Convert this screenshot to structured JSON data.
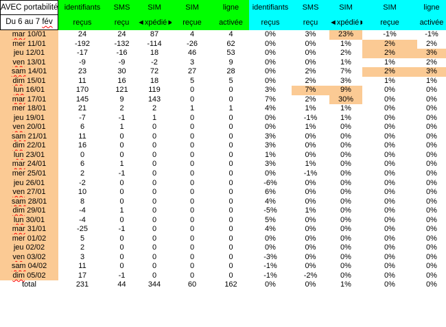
{
  "titles": {
    "line1": "AVEC portabilité",
    "line2_prefix": "Du 6 au 7",
    "line2_suffix": "fév"
  },
  "colors": {
    "left_header_bg": "#00FF00",
    "right_header_bg": "#00FFFF",
    "date_column_bg": "#FBCA94",
    "highlight_bg": "#FBCA94",
    "spellcheck_underline": "#FF0000"
  },
  "header": {
    "left_top": [
      "identifiants",
      "SMS",
      "SIM",
      "SIM",
      "ligne"
    ],
    "left_bottom": [
      "reçus",
      "reçu",
      "◄xpédié►",
      "reçue",
      "activée"
    ],
    "right_top": [
      "identifiants",
      "SMS",
      "SIM",
      "SIM",
      "ligne"
    ],
    "right_bottom": [
      "reçus",
      "reçu",
      "◄xpédié►",
      "reçue",
      "activée"
    ]
  },
  "rows": [
    {
      "day": "mar",
      "dnum": "10/01",
      "sq": true,
      "counts": [
        24,
        24,
        87,
        4,
        4
      ],
      "pcts": [
        "0%",
        "3%",
        "23%",
        "-1%",
        "-1%"
      ],
      "hl": [
        2
      ]
    },
    {
      "day": "mer",
      "dnum": "11/01",
      "sq": false,
      "counts": [
        -192,
        -132,
        -114,
        -26,
        62
      ],
      "pcts": [
        "0%",
        "0%",
        "1%",
        "2%",
        "2%"
      ],
      "hl": [
        3
      ]
    },
    {
      "day": "jeu",
      "dnum": "12/01",
      "sq": false,
      "counts": [
        -17,
        -16,
        18,
        46,
        53
      ],
      "pcts": [
        "0%",
        "0%",
        "2%",
        "2%",
        "3%"
      ],
      "hl": [
        3,
        4
      ]
    },
    {
      "day": "ven",
      "dnum": "13/01",
      "sq": true,
      "counts": [
        -9,
        -9,
        -2,
        3,
        9
      ],
      "pcts": [
        "0%",
        "0%",
        "1%",
        "1%",
        "2%"
      ],
      "hl": []
    },
    {
      "day": "sam",
      "dnum": "14/01",
      "sq": true,
      "counts": [
        23,
        30,
        72,
        27,
        28
      ],
      "pcts": [
        "0%",
        "2%",
        "7%",
        "2%",
        "3%"
      ],
      "hl": [
        3,
        4
      ]
    },
    {
      "day": "dim",
      "dnum": "15/01",
      "sq": true,
      "counts": [
        11,
        16,
        18,
        5,
        5
      ],
      "pcts": [
        "0%",
        "2%",
        "3%",
        "1%",
        "1%"
      ],
      "hl": []
    },
    {
      "day": "lun",
      "dnum": "16/01",
      "sq": true,
      "counts": [
        170,
        121,
        119,
        0,
        0
      ],
      "pcts": [
        "3%",
        "7%",
        "9%",
        "0%",
        "0%"
      ],
      "hl": [
        1,
        2
      ]
    },
    {
      "day": "mar",
      "dnum": "17/01",
      "sq": true,
      "counts": [
        145,
        9,
        143,
        0,
        0
      ],
      "pcts": [
        "7%",
        "2%",
        "30%",
        "0%",
        "0%"
      ],
      "hl": [
        2
      ]
    },
    {
      "day": "mer",
      "dnum": "18/01",
      "sq": false,
      "counts": [
        21,
        2,
        2,
        1,
        1
      ],
      "pcts": [
        "4%",
        "1%",
        "1%",
        "0%",
        "0%"
      ],
      "hl": []
    },
    {
      "day": "jeu",
      "dnum": "19/01",
      "sq": false,
      "counts": [
        -7,
        -1,
        1,
        0,
        0
      ],
      "pcts": [
        "0%",
        "-1%",
        "1%",
        "0%",
        "0%"
      ],
      "hl": []
    },
    {
      "day": "ven",
      "dnum": "20/01",
      "sq": true,
      "counts": [
        6,
        1,
        0,
        0,
        0
      ],
      "pcts": [
        "0%",
        "1%",
        "0%",
        "0%",
        "0%"
      ],
      "hl": []
    },
    {
      "day": "sam",
      "dnum": "21/01",
      "sq": true,
      "counts": [
        11,
        0,
        0,
        0,
        0
      ],
      "pcts": [
        "3%",
        "0%",
        "0%",
        "0%",
        "0%"
      ],
      "hl": []
    },
    {
      "day": "dim",
      "dnum": "22/01",
      "sq": true,
      "counts": [
        16,
        0,
        0,
        0,
        0
      ],
      "pcts": [
        "3%",
        "0%",
        "0%",
        "0%",
        "0%"
      ],
      "hl": []
    },
    {
      "day": "lun",
      "dnum": "23/01",
      "sq": true,
      "counts": [
        0,
        0,
        0,
        0,
        0
      ],
      "pcts": [
        "1%",
        "0%",
        "0%",
        "0%",
        "0%"
      ],
      "hl": []
    },
    {
      "day": "mar",
      "dnum": "24/01",
      "sq": true,
      "counts": [
        6,
        1,
        0,
        0,
        0
      ],
      "pcts": [
        "3%",
        "1%",
        "0%",
        "0%",
        "0%"
      ],
      "hl": []
    },
    {
      "day": "mer",
      "dnum": "25/01",
      "sq": false,
      "counts": [
        2,
        -1,
        0,
        0,
        0
      ],
      "pcts": [
        "0%",
        "-1%",
        "0%",
        "0%",
        "0%"
      ],
      "hl": []
    },
    {
      "day": "jeu",
      "dnum": "26/01",
      "sq": false,
      "counts": [
        -2,
        0,
        0,
        0,
        0
      ],
      "pcts": [
        "-6%",
        "0%",
        "0%",
        "0%",
        "0%"
      ],
      "hl": []
    },
    {
      "day": "ven",
      "dnum": "27/01",
      "sq": true,
      "counts": [
        10,
        0,
        0,
        0,
        0
      ],
      "pcts": [
        "6%",
        "0%",
        "0%",
        "0%",
        "0%"
      ],
      "hl": []
    },
    {
      "day": "sam",
      "dnum": "28/01",
      "sq": true,
      "counts": [
        8,
        0,
        0,
        0,
        0
      ],
      "pcts": [
        "4%",
        "0%",
        "0%",
        "0%",
        "0%"
      ],
      "hl": []
    },
    {
      "day": "dim",
      "dnum": "29/01",
      "sq": true,
      "counts": [
        -4,
        1,
        0,
        0,
        0
      ],
      "pcts": [
        "-5%",
        "1%",
        "0%",
        "0%",
        "0%"
      ],
      "hl": []
    },
    {
      "day": "lun",
      "dnum": "30/01",
      "sq": true,
      "counts": [
        -4,
        0,
        0,
        0,
        0
      ],
      "pcts": [
        "5%",
        "0%",
        "0%",
        "0%",
        "0%"
      ],
      "hl": []
    },
    {
      "day": "mar",
      "dnum": "31/01",
      "sq": true,
      "counts": [
        -25,
        -1,
        0,
        0,
        0
      ],
      "pcts": [
        "4%",
        "0%",
        "0%",
        "0%",
        "0%"
      ],
      "hl": []
    },
    {
      "day": "mer",
      "dnum": "01/02",
      "sq": false,
      "counts": [
        5,
        0,
        0,
        0,
        0
      ],
      "pcts": [
        "0%",
        "0%",
        "0%",
        "0%",
        "0%"
      ],
      "hl": []
    },
    {
      "day": "jeu",
      "dnum": "02/02",
      "sq": false,
      "counts": [
        2,
        0,
        0,
        0,
        0
      ],
      "pcts": [
        "0%",
        "0%",
        "0%",
        "0%",
        "0%"
      ],
      "hl": []
    },
    {
      "day": "ven",
      "dnum": "03/02",
      "sq": true,
      "counts": [
        3,
        0,
        0,
        0,
        0
      ],
      "pcts": [
        "-3%",
        "0%",
        "0%",
        "0%",
        "0%"
      ],
      "hl": []
    },
    {
      "day": "sam",
      "dnum": "04/02",
      "sq": true,
      "counts": [
        11,
        0,
        0,
        0,
        0
      ],
      "pcts": [
        "-1%",
        "0%",
        "0%",
        "0%",
        "0%"
      ],
      "hl": []
    },
    {
      "day": "dim",
      "dnum": "05/02",
      "sq": true,
      "counts": [
        17,
        -1,
        0,
        0,
        0
      ],
      "pcts": [
        "-1%",
        "-2%",
        "0%",
        "0%",
        "0%"
      ],
      "hl": []
    },
    {
      "day": "total",
      "dnum": "",
      "sq": false,
      "total": true,
      "counts": [
        231,
        44,
        344,
        60,
        162
      ],
      "pcts": [
        "0%",
        "0%",
        "1%",
        "0%",
        "0%"
      ],
      "hl": []
    }
  ]
}
